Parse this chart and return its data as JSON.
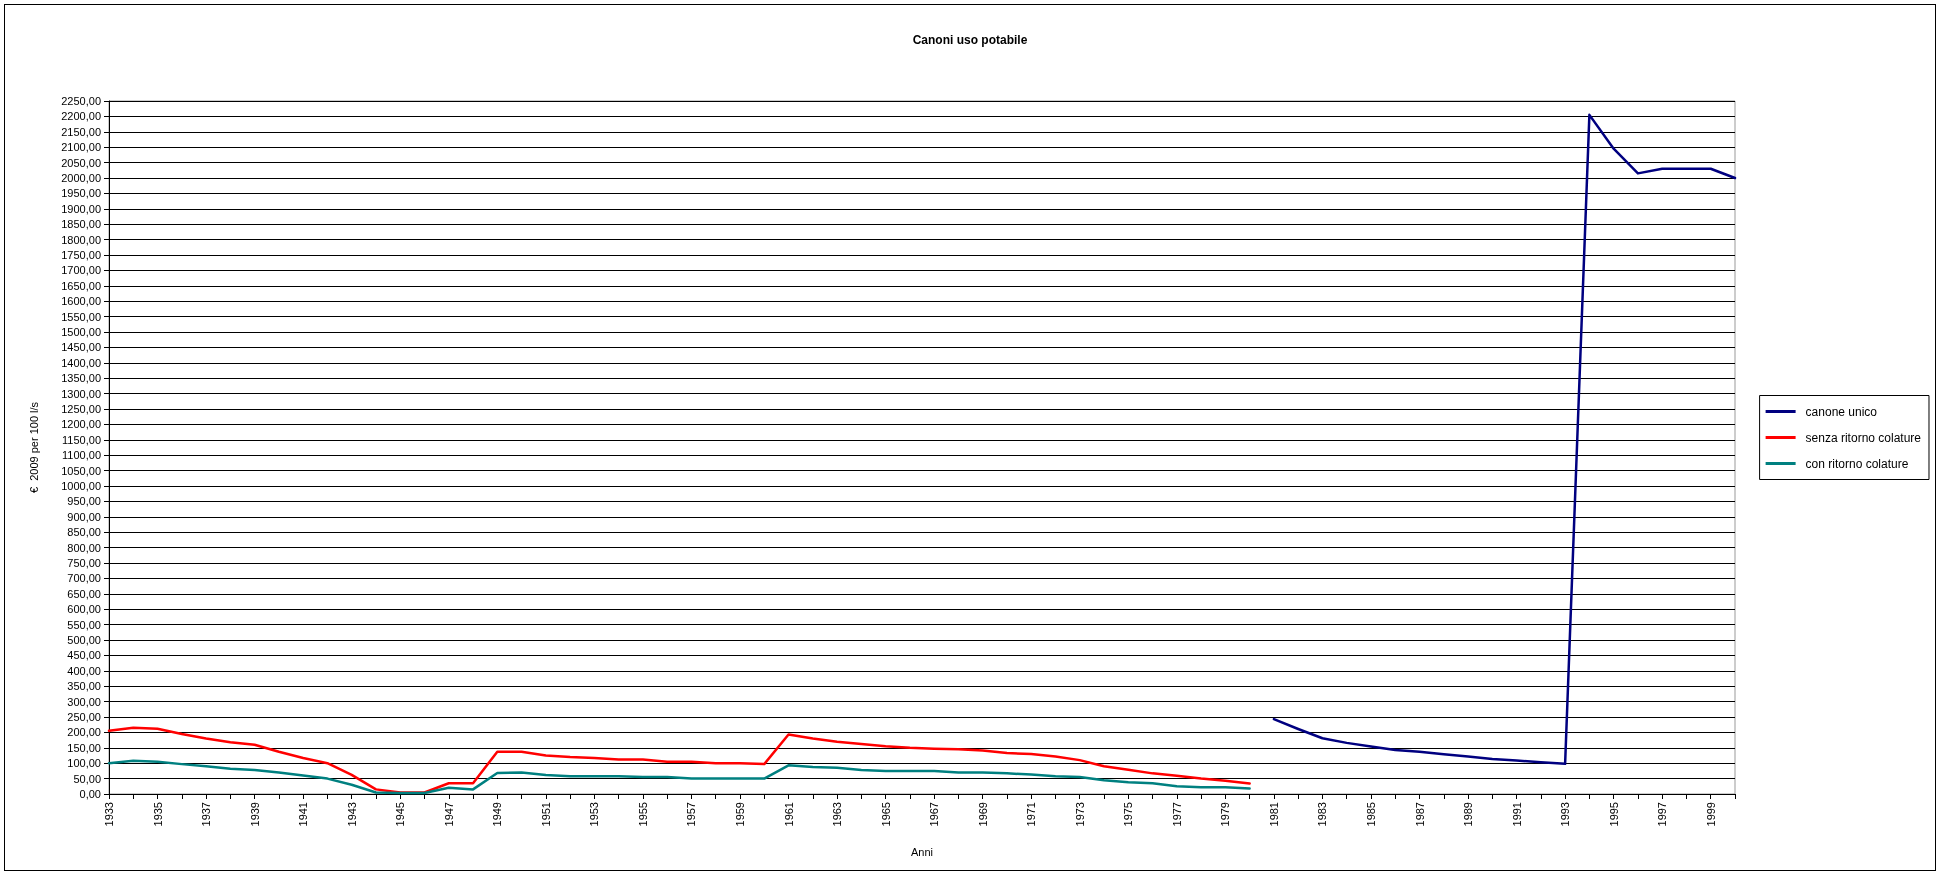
{
  "chart_data": {
    "type": "line",
    "title": "Canoni uso potabile",
    "xlabel": "Anni",
    "ylabel": "€  2009 per 100 l/s",
    "categories": [
      "1933",
      null,
      "1935",
      null,
      "1937",
      null,
      "1939",
      null,
      "1941",
      null,
      "1943",
      null,
      "1945",
      null,
      "1947",
      null,
      "1949",
      null,
      "1951",
      null,
      "1953",
      null,
      "1955",
      null,
      "1957",
      null,
      "1959",
      null,
      "1961",
      null,
      "1963",
      null,
      "1965",
      null,
      "1967",
      null,
      "1969",
      null,
      "1971",
      null,
      "1973",
      null,
      "1975",
      null,
      "1977",
      null,
      "1979",
      null,
      "1981",
      null,
      "1983",
      null,
      "1985",
      null,
      "1987",
      null,
      "1989",
      null,
      "1991",
      null,
      "1993",
      null,
      "1995",
      null,
      "1997",
      null,
      "1999",
      null
    ],
    "series": [
      {
        "name": "canone unico",
        "color": "#000080",
        "values": [
          null,
          null,
          null,
          null,
          null,
          null,
          null,
          null,
          null,
          null,
          null,
          null,
          null,
          null,
          null,
          null,
          null,
          null,
          null,
          null,
          null,
          null,
          null,
          null,
          null,
          null,
          null,
          null,
          null,
          null,
          null,
          null,
          null,
          null,
          null,
          null,
          null,
          null,
          null,
          null,
          null,
          null,
          null,
          null,
          null,
          null,
          null,
          null,
          243,
          211,
          181,
          166,
          154,
          143,
          137,
          129,
          122,
          114,
          109,
          103,
          98,
          2205,
          2095,
          2015,
          2030,
          2030,
          2030,
          2000
        ]
      },
      {
        "name": "senza ritorno colature",
        "color": "#ff0000",
        "values": [
          205,
          215,
          212,
          195,
          180,
          168,
          160,
          137,
          117,
          100,
          62,
          15,
          5,
          5,
          35,
          35,
          137,
          137,
          125,
          120,
          117,
          112,
          112,
          105,
          105,
          100,
          100,
          97,
          193,
          180,
          170,
          162,
          155,
          150,
          147,
          145,
          141,
          133,
          130,
          122,
          110,
          90,
          79,
          67,
          59,
          50,
          43,
          34,
          null,
          null,
          null,
          null,
          null,
          null,
          null,
          null,
          null,
          null,
          null,
          null,
          null,
          null,
          null,
          null,
          null,
          null,
          null,
          null
        ]
      },
      {
        "name": "con ritorno colature",
        "color": "#008080",
        "values": [
          100,
          108,
          105,
          97,
          90,
          82,
          78,
          70,
          60,
          50,
          30,
          5,
          3,
          3,
          20,
          15,
          68,
          70,
          62,
          58,
          58,
          58,
          55,
          55,
          50,
          50,
          50,
          50,
          93,
          88,
          85,
          78,
          75,
          75,
          75,
          70,
          70,
          67,
          63,
          58,
          55,
          45,
          38,
          35,
          25,
          22,
          22,
          18,
          null,
          null,
          null,
          null,
          null,
          null,
          null,
          null,
          null,
          null,
          null,
          null,
          null,
          null,
          null,
          null,
          null,
          null,
          null,
          null
        ]
      }
    ],
    "ylim": [
      0,
      2250
    ],
    "yticks": [
      {
        "value": 0,
        "label": "0,00"
      },
      {
        "value": 50,
        "label": "50,00"
      },
      {
        "value": 100,
        "label": "100,00"
      },
      {
        "value": 150,
        "label": "150,00"
      },
      {
        "value": 200,
        "label": "200,00"
      },
      {
        "value": 250,
        "label": "250,00"
      },
      {
        "value": 300,
        "label": "300,00"
      },
      {
        "value": 350,
        "label": "350,00"
      },
      {
        "value": 400,
        "label": "400,00"
      },
      {
        "value": 450,
        "label": "450,00"
      },
      {
        "value": 500,
        "label": "500,00"
      },
      {
        "value": 550,
        "label": "550,00"
      },
      {
        "value": 600,
        "label": "600,00"
      },
      {
        "value": 650,
        "label": "650,00"
      },
      {
        "value": 700,
        "label": "700,00"
      },
      {
        "value": 750,
        "label": "750,00"
      },
      {
        "value": 800,
        "label": "800,00"
      },
      {
        "value": 850,
        "label": "850,00"
      },
      {
        "value": 900,
        "label": "900,00"
      },
      {
        "value": 950,
        "label": "950,00"
      },
      {
        "value": 1000,
        "label": "1000,00"
      },
      {
        "value": 1050,
        "label": "1050,00"
      },
      {
        "value": 1100,
        "label": "1100,00"
      },
      {
        "value": 1150,
        "label": "1150,00"
      },
      {
        "value": 1200,
        "label": "1200,00"
      },
      {
        "value": 1250,
        "label": "1250,00"
      },
      {
        "value": 1300,
        "label": "1300,00"
      },
      {
        "value": 1350,
        "label": "1350,00"
      },
      {
        "value": 1400,
        "label": "1400,00"
      },
      {
        "value": 1450,
        "label": "1450,00"
      },
      {
        "value": 1500,
        "label": "1500,00"
      },
      {
        "value": 1550,
        "label": "1550,00"
      },
      {
        "value": 1600,
        "label": "1600,00"
      },
      {
        "value": 1650,
        "label": "1650,00"
      },
      {
        "value": 1700,
        "label": "1700,00"
      },
      {
        "value": 1750,
        "label": "1750,00"
      },
      {
        "value": 1800,
        "label": "1800,00"
      },
      {
        "value": 1850,
        "label": "1850,00"
      },
      {
        "value": 1900,
        "label": "1900,00"
      },
      {
        "value": 1950,
        "label": "1950,00"
      },
      {
        "value": 2000,
        "label": "2000,00"
      },
      {
        "value": 2050,
        "label": "2050,00"
      },
      {
        "value": 2100,
        "label": "2100,00"
      },
      {
        "value": 2150,
        "label": "2150,00"
      },
      {
        "value": 2200,
        "label": "2200,00"
      },
      {
        "value": 2250,
        "label": "2250,00"
      }
    ],
    "grid": "y",
    "legend": "right",
    "marker": "none",
    "line_style": "solid"
  }
}
